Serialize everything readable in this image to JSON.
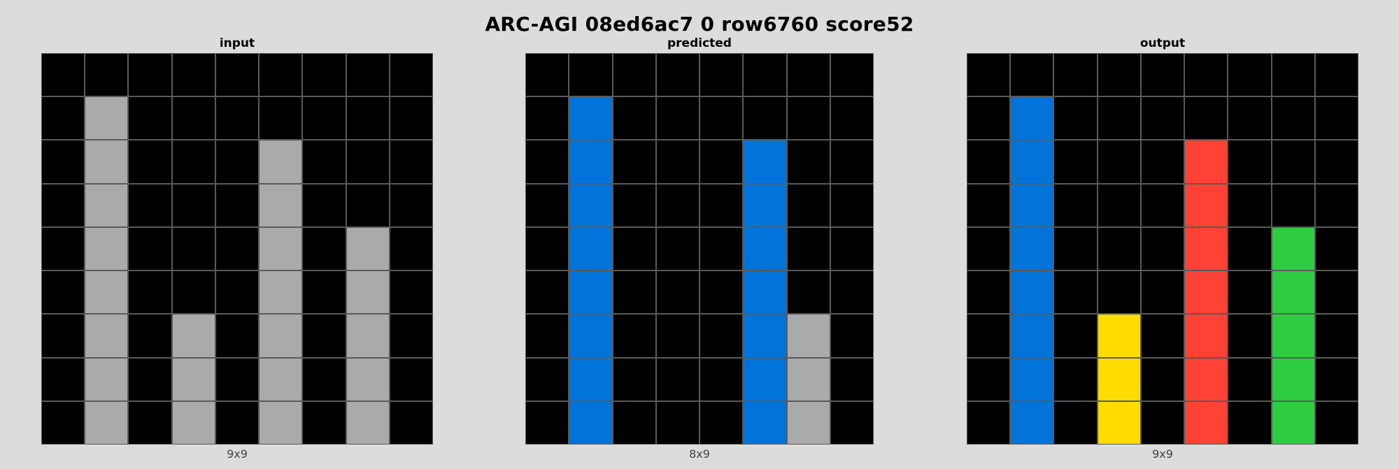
{
  "title": "ARC-AGI 08ed6ac7 0 row6760 score52",
  "palette": {
    "0": "#000000",
    "1": "#0074d9",
    "2": "#ff4136",
    "3": "#2ecc40",
    "4": "#ffdc00",
    "5": "#aaaaaa"
  },
  "panels": [
    {
      "label": "input",
      "dims": "9x9",
      "grid": [
        [
          0,
          0,
          0,
          0,
          0,
          0,
          0,
          0,
          0
        ],
        [
          0,
          5,
          0,
          0,
          0,
          0,
          0,
          0,
          0
        ],
        [
          0,
          5,
          0,
          0,
          0,
          5,
          0,
          0,
          0
        ],
        [
          0,
          5,
          0,
          0,
          0,
          5,
          0,
          0,
          0
        ],
        [
          0,
          5,
          0,
          0,
          0,
          5,
          0,
          5,
          0
        ],
        [
          0,
          5,
          0,
          0,
          0,
          5,
          0,
          5,
          0
        ],
        [
          0,
          5,
          0,
          5,
          0,
          5,
          0,
          5,
          0
        ],
        [
          0,
          5,
          0,
          5,
          0,
          5,
          0,
          5,
          0
        ],
        [
          0,
          5,
          0,
          5,
          0,
          5,
          0,
          5,
          0
        ]
      ]
    },
    {
      "label": "predicted",
      "dims": "8x9",
      "grid": [
        [
          0,
          0,
          0,
          0,
          0,
          0,
          0,
          0
        ],
        [
          0,
          1,
          0,
          0,
          0,
          0,
          0,
          0
        ],
        [
          0,
          1,
          0,
          0,
          0,
          1,
          0,
          0
        ],
        [
          0,
          1,
          0,
          0,
          0,
          1,
          0,
          0
        ],
        [
          0,
          1,
          0,
          0,
          0,
          1,
          0,
          0
        ],
        [
          0,
          1,
          0,
          0,
          0,
          1,
          0,
          0
        ],
        [
          0,
          1,
          0,
          0,
          0,
          1,
          5,
          0
        ],
        [
          0,
          1,
          0,
          0,
          0,
          1,
          5,
          0
        ],
        [
          0,
          1,
          0,
          0,
          0,
          1,
          5,
          0
        ]
      ]
    },
    {
      "label": "output",
      "dims": "9x9",
      "grid": [
        [
          0,
          0,
          0,
          0,
          0,
          0,
          0,
          0,
          0
        ],
        [
          0,
          1,
          0,
          0,
          0,
          0,
          0,
          0,
          0
        ],
        [
          0,
          1,
          0,
          0,
          0,
          2,
          0,
          0,
          0
        ],
        [
          0,
          1,
          0,
          0,
          0,
          2,
          0,
          0,
          0
        ],
        [
          0,
          1,
          0,
          0,
          0,
          2,
          0,
          3,
          0
        ],
        [
          0,
          1,
          0,
          0,
          0,
          2,
          0,
          3,
          0
        ],
        [
          0,
          1,
          0,
          4,
          0,
          2,
          0,
          3,
          0
        ],
        [
          0,
          1,
          0,
          4,
          0,
          2,
          0,
          3,
          0
        ],
        [
          0,
          1,
          0,
          4,
          0,
          2,
          0,
          3,
          0
        ]
      ]
    }
  ]
}
